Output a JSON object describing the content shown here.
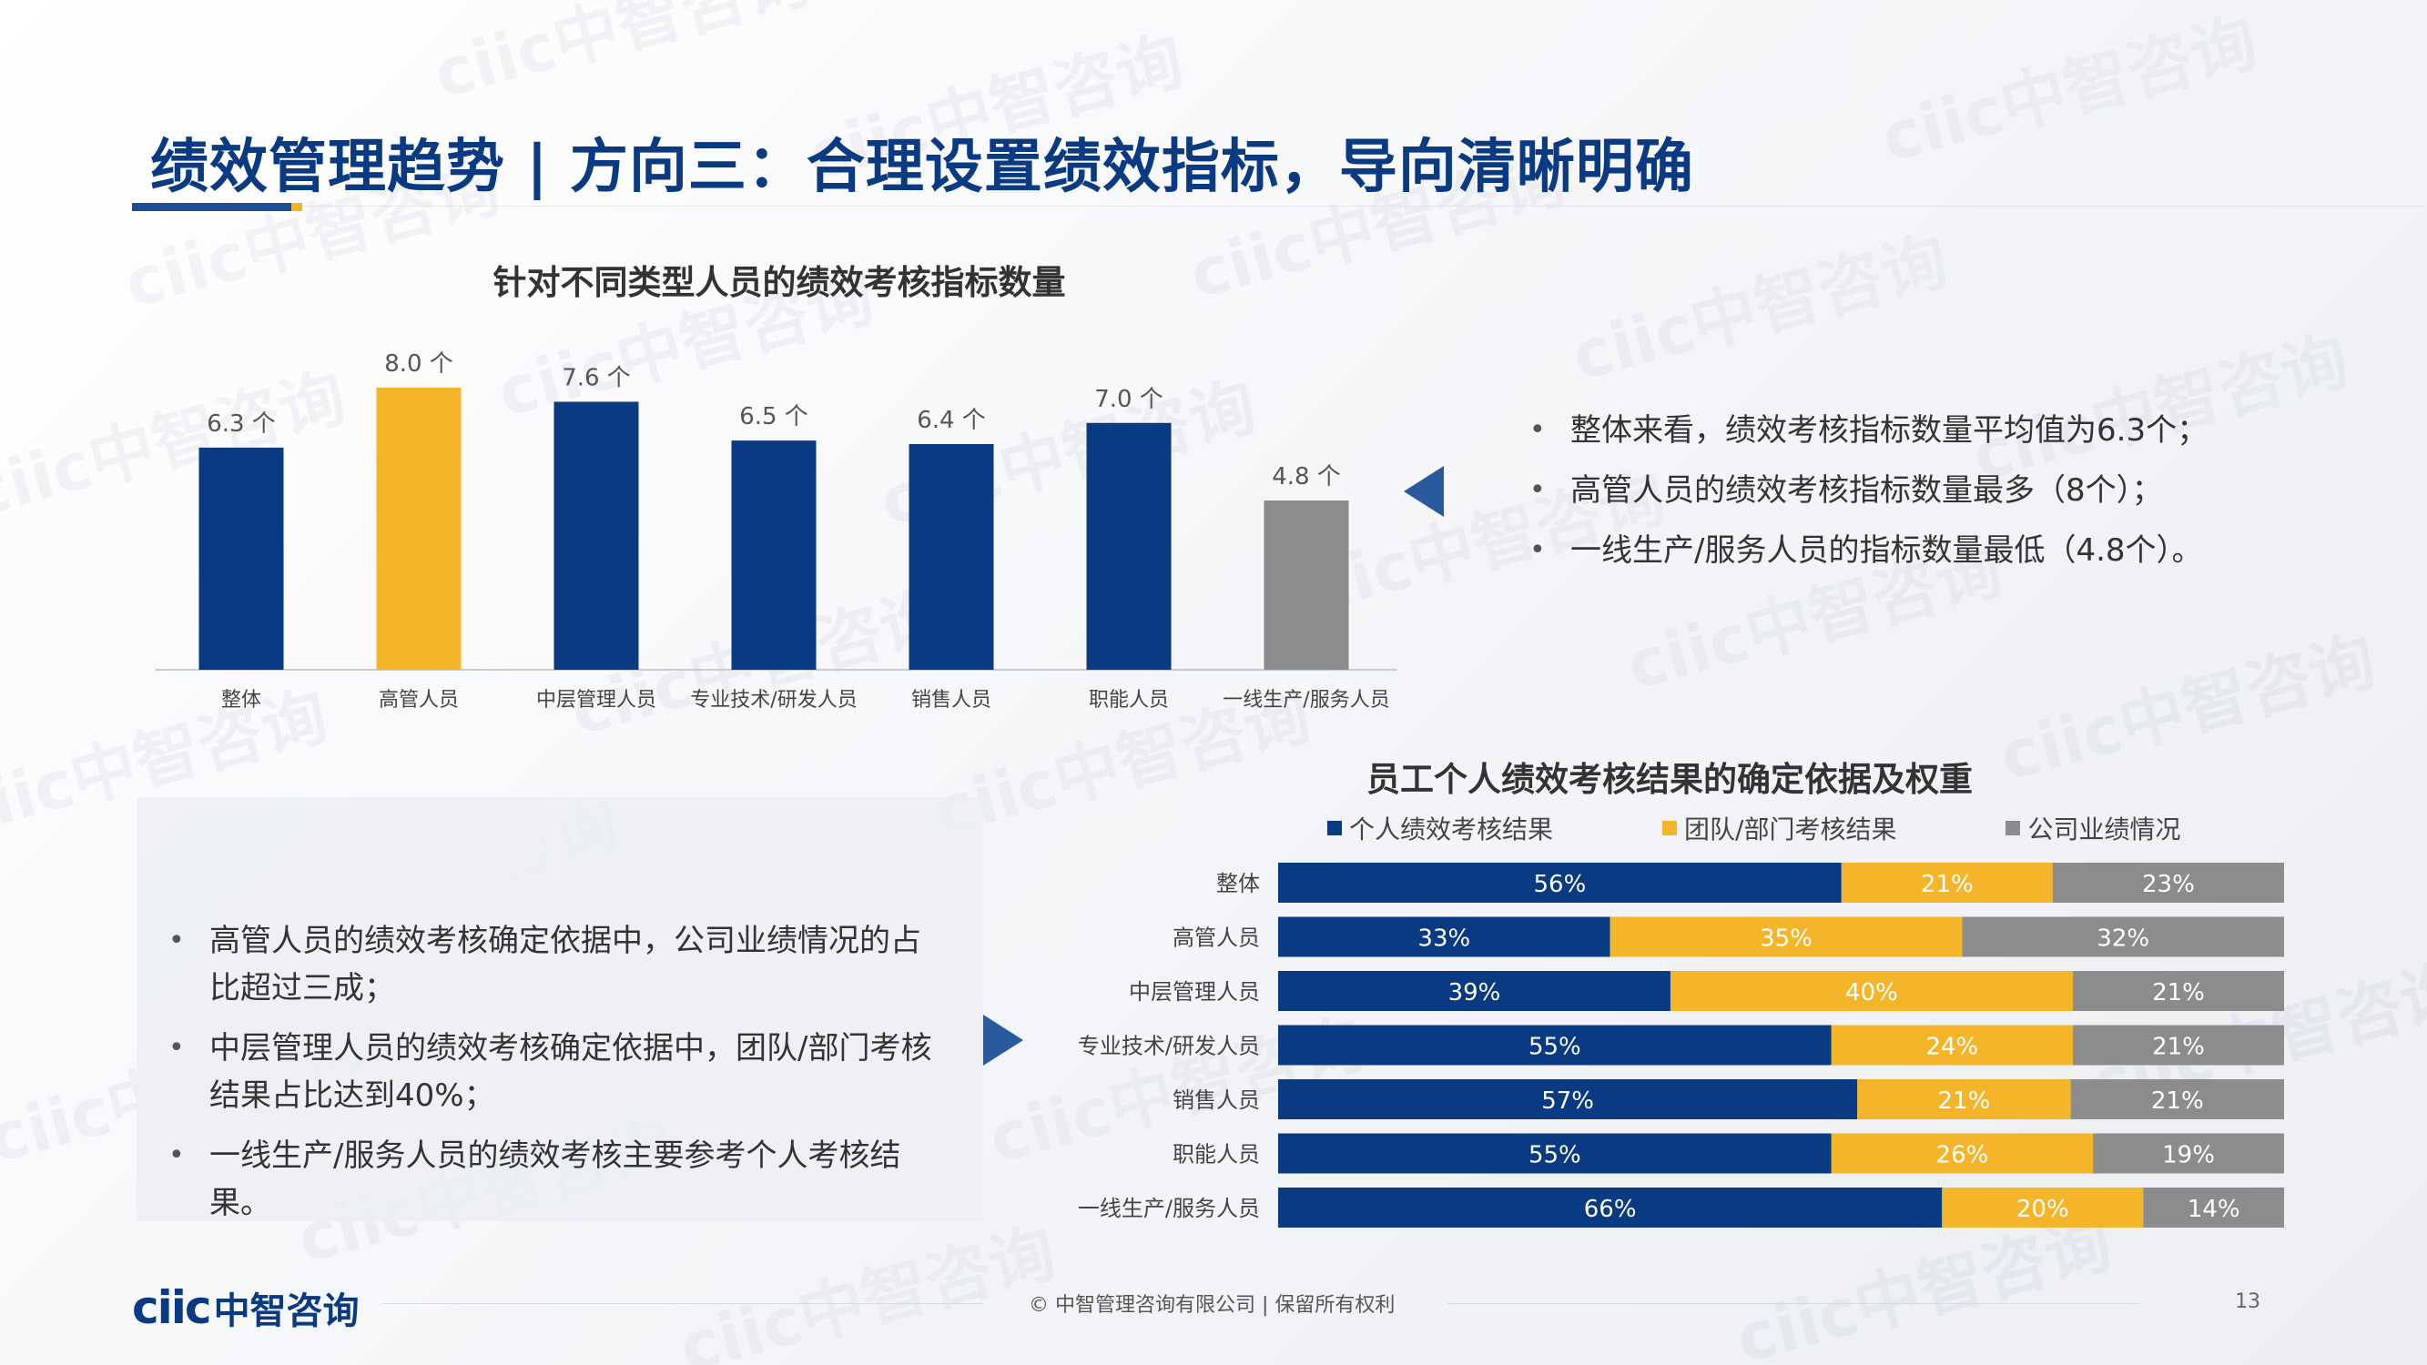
{
  "title": "绩效管理趋势 | 方向三：合理设置绩效指标，导向清晰明确",
  "watermark_text": "ciic中智咨询",
  "colors": {
    "blue": "#0a3a82",
    "gold": "#f5b52b",
    "gray": "#8c8c8c",
    "title": "#0a3a82"
  },
  "chart_data": [
    {
      "type": "bar",
      "title": "针对不同类型人员的绩效考核指标数量",
      "categories": [
        "整体",
        "高管人员",
        "中层管理人员",
        "专业技术/研发人员",
        "销售人员",
        "职能人员",
        "一线生产/服务人员"
      ],
      "values": [
        6.3,
        8.0,
        7.6,
        6.5,
        6.4,
        7.0,
        4.8
      ],
      "value_labels": [
        "6.3 个",
        "8.0 个",
        "7.6 个",
        "6.5 个",
        "6.4 个",
        "7.0 个",
        "4.8 个"
      ],
      "bar_colors": [
        "#0a3a82",
        "#f5b52b",
        "#0a3a82",
        "#0a3a82",
        "#0a3a82",
        "#0a3a82",
        "#8c8c8c"
      ],
      "ylim": [
        0,
        8.0
      ],
      "grid": false
    },
    {
      "type": "bar",
      "stacked": "horizontal-100%",
      "title": "员工个人绩效考核结果的确定依据及权重",
      "categories": [
        "整体",
        "高管人员",
        "中层管理人员",
        "专业技术/研发人员",
        "销售人员",
        "职能人员",
        "一线生产/服务人员"
      ],
      "series": [
        {
          "name": "个人绩效考核结果",
          "color": "#0a3a82",
          "values": [
            56,
            33,
            39,
            55,
            57,
            55,
            66
          ]
        },
        {
          "name": "团队/部门考核结果",
          "color": "#f5b52b",
          "values": [
            21,
            35,
            40,
            24,
            21,
            26,
            20
          ]
        },
        {
          "name": "公司业绩情况",
          "color": "#8c8c8c",
          "values": [
            23,
            32,
            21,
            21,
            21,
            19,
            14
          ]
        }
      ],
      "value_suffix": "%",
      "legend": "top",
      "grid": false
    }
  ],
  "bullets_top": [
    "整体来看，绩效考核指标数量平均值为6.3个；",
    "高管人员的绩效考核指标数量最多（8个）；",
    "一线生产/服务人员的指标数量最低（4.8个）。"
  ],
  "bullets_bottom": [
    "高管人员的绩效考核确定依据中，公司业绩情况的占比超过三成；",
    "中层管理人员的绩效考核确定依据中，团队/部门考核结果占比达到40%；",
    "一线生产/服务人员的绩效考核主要参考个人考核结果。"
  ],
  "footer": {
    "logo_mark": "ciic",
    "logo_text": "中智咨询",
    "copyright": "© 中智管理咨询有限公司 | 保留所有权利",
    "page_number": "13"
  }
}
